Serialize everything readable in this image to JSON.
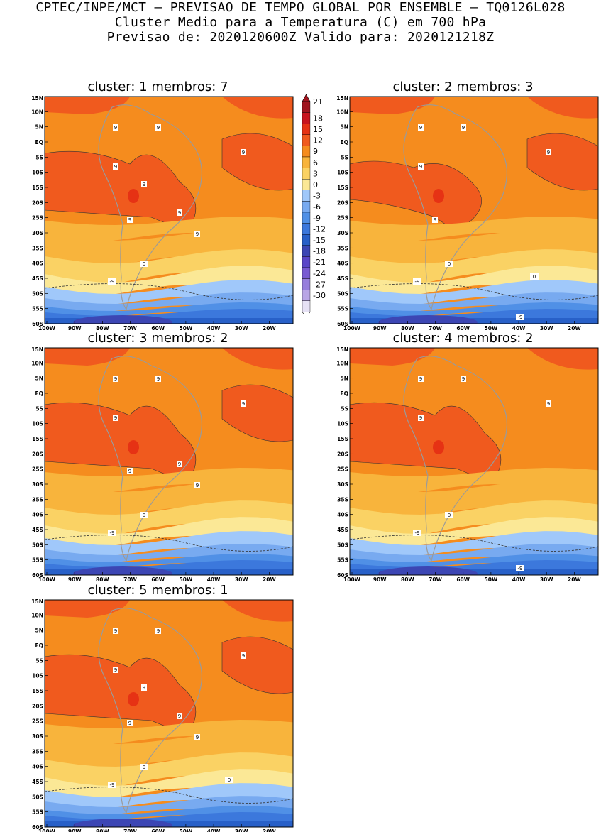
{
  "header": {
    "line1": "CPTEC/INPE/MCT – PREVISAO DE TEMPO GLOBAL POR ENSEMBLE – TQ0126L028",
    "line2": "Cluster Medio para a Temperatura (C) em 700 hPa",
    "line3": "Previsao de: 2020120600Z   Valido para: 2020121218Z"
  },
  "axes": {
    "lat_labels": [
      "15N",
      "10N",
      "5N",
      "EQ",
      "5S",
      "10S",
      "15S",
      "20S",
      "25S",
      "30S",
      "35S",
      "40S",
      "45S",
      "50S",
      "55S",
      "60S"
    ],
    "lon_labels": [
      "100W",
      "90W",
      "80W",
      "70W",
      "60W",
      "50W",
      "40W",
      "30W",
      "20W"
    ]
  },
  "colorbar": {
    "levels": [
      "21",
      "18",
      "15",
      "12",
      "9",
      "6",
      "3",
      "0",
      "-3",
      "-6",
      "-9",
      "-12",
      "-15",
      "-18",
      "-21",
      "-24",
      "-27",
      "-30"
    ],
    "colors": [
      "#a0141e",
      "#c8141e",
      "#e63214",
      "#f05a1e",
      "#f58c1e",
      "#f8b43c",
      "#fad264",
      "#fbe896",
      "#a0c8fa",
      "#78aaf0",
      "#5090e6",
      "#3c78dc",
      "#2860c8",
      "#3c46b4",
      "#5a46c8",
      "#785ad2",
      "#967ddc",
      "#b9a5e6",
      "#e6e1f5"
    ]
  },
  "panels": [
    {
      "title": "cluster: 1   membros: 7",
      "contour_labels": {
        "nine": [
          "9",
          "9",
          "9",
          "9",
          "9",
          "9",
          "9",
          "9"
        ],
        "zero": "0",
        "minus9": "-9"
      }
    },
    {
      "title": "cluster: 2   membros: 3",
      "contour_labels": {
        "nine": [
          "9",
          "9",
          "9",
          "9",
          "9"
        ],
        "zero": "0",
        "zero2": "0",
        "minus9": "-9",
        "minus9b": "-9"
      }
    },
    {
      "title": "cluster: 3   membros: 2",
      "contour_labels": {
        "nine": [
          "9",
          "9",
          "9",
          "9",
          "9",
          "9",
          "9"
        ],
        "zero": "0",
        "minus9": "-9"
      }
    },
    {
      "title": "cluster: 4   membros: 2",
      "contour_labels": {
        "nine": [
          "9",
          "9",
          "9",
          "9"
        ],
        "zero": "0",
        "minus9": "-9",
        "minus9b": "-9"
      }
    },
    {
      "title": "cluster: 5   membros: 1",
      "contour_labels": {
        "nine": [
          "9",
          "9",
          "9",
          "9",
          "9",
          "9",
          "9",
          "9"
        ],
        "zero": "0",
        "zero2": "0",
        "minus9": "-9"
      }
    }
  ]
}
